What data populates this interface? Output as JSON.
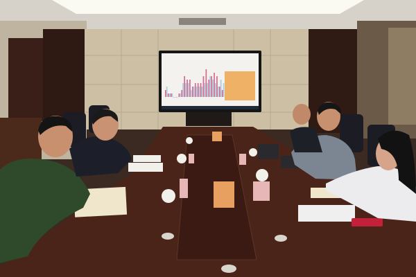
{
  "scene": {
    "description_type": "meeting-room-photo",
    "colors": {
      "ceiling": "#d9d6cf",
      "ceiling_light": "#fbfaf4",
      "back_wall": "#cfc2a8",
      "wood_panel": "#3b2219",
      "table": "#4a2418",
      "screen_bg": "#f4f2ee",
      "screen_bar_pink": "#d66a8e",
      "screen_bar_blue": "#a9cde0",
      "screen_box": "#eeb166",
      "chair": "#1d1d22"
    },
    "screen_bars": [
      2,
      1,
      1,
      0,
      0,
      1,
      2,
      6,
      5,
      5,
      3,
      4,
      4,
      4,
      6,
      8,
      5,
      6,
      7,
      6,
      3,
      2
    ],
    "screen_bars_blue": [
      3,
      1,
      1,
      0,
      0,
      1,
      4,
      4,
      4,
      2,
      3,
      3,
      3,
      3,
      4,
      4,
      6,
      5,
      4,
      3,
      5,
      4
    ]
  }
}
